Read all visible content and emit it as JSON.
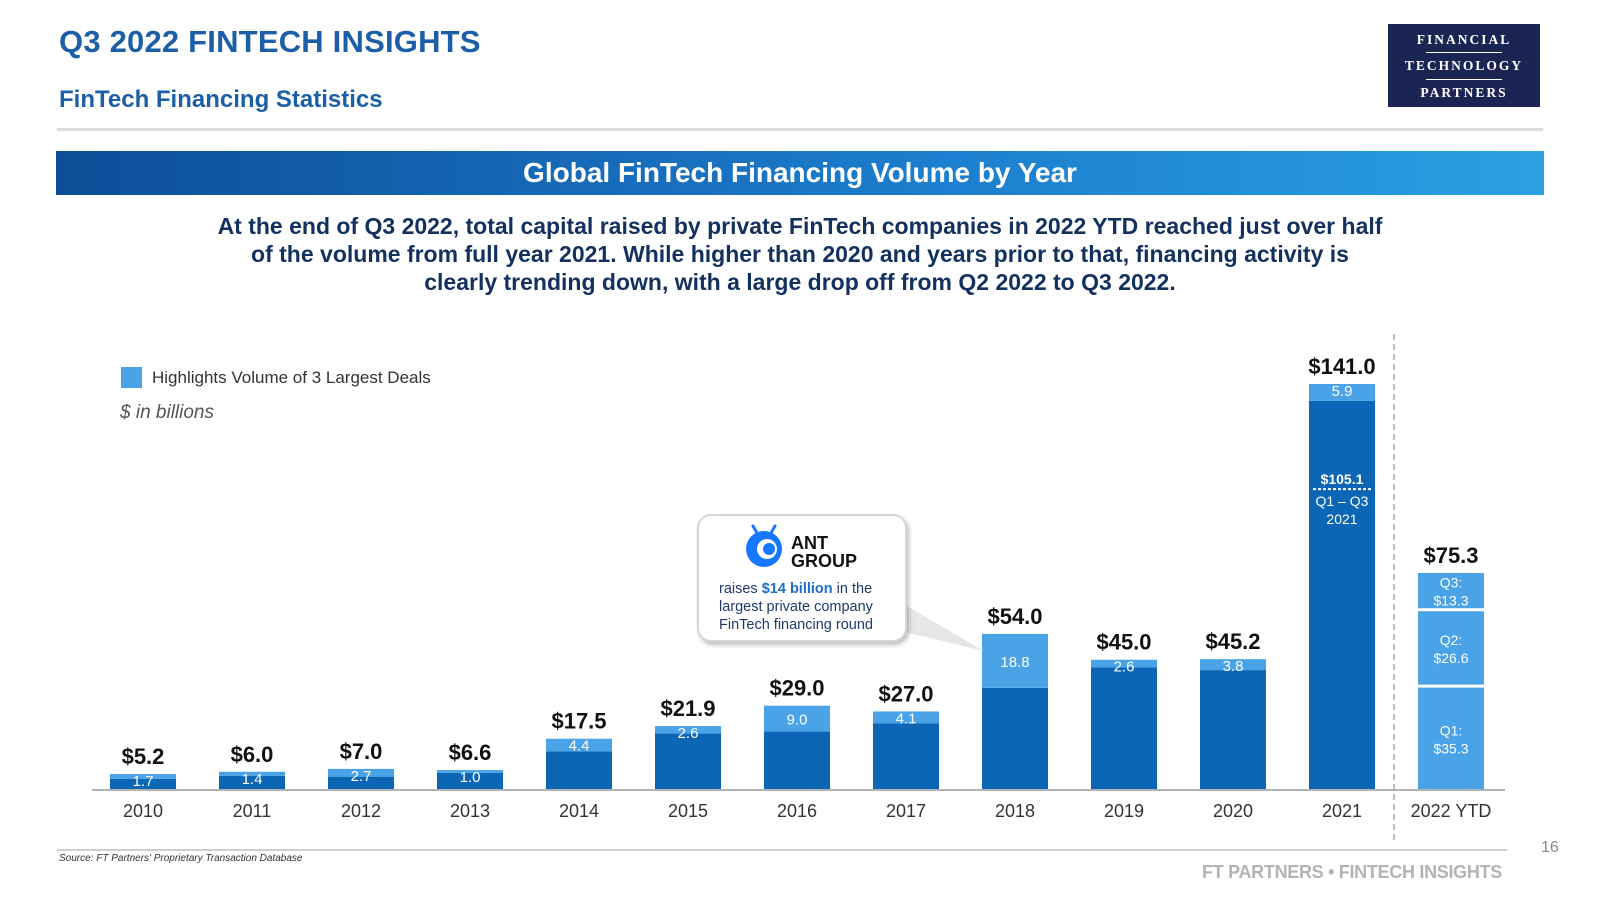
{
  "header": {
    "title": "Q3 2022 FINTECH INSIGHTS",
    "subtitle": "FinTech Financing Statistics",
    "logo": {
      "line1": "FINANCIAL",
      "line2": "TECHNOLOGY",
      "line3": "PARTNERS"
    }
  },
  "banner": {
    "title": "Global FinTech Financing Volume by Year"
  },
  "summary": {
    "lines": [
      "At the end of Q3 2022, total capital raised by private FinTech companies in 2022 YTD reached just over half",
      "of the volume from full year 2021. While higher than 2020 and years prior to that, financing activity is",
      "clearly trending down, with a large drop off from Q2 2022 to Q3 2022."
    ]
  },
  "legend": {
    "label": "Highlights Volume of 3 Largest Deals"
  },
  "unit_note": "$ in billions",
  "colors": {
    "base": "#0b66b6",
    "highlight": "#4aa3e6",
    "text": "#111111"
  },
  "callout": {
    "brand_line1": "ANT",
    "brand_line2": "GROUP",
    "text_prefix": "raises ",
    "text_bold": "$14 billion",
    "text_rest1": " in the",
    "text_line2": "largest private company",
    "text_line3": "FinTech financing round",
    "icon": "ant-group-logo-icon"
  },
  "chart_data": {
    "type": "bar",
    "stacked": true,
    "title": "Global FinTech Financing Volume by Year",
    "ylabel": "$ in billions",
    "categories": [
      "2010",
      "2011",
      "2012",
      "2013",
      "2014",
      "2015",
      "2016",
      "2017",
      "2018",
      "2019",
      "2020",
      "2021"
    ],
    "totals": [
      5.2,
      6.0,
      7.0,
      6.6,
      17.5,
      21.9,
      29.0,
      27.0,
      54.0,
      45.0,
      45.2,
      141.0
    ],
    "total_labels": [
      "$5.2",
      "$6.0",
      "$7.0",
      "$6.6",
      "$17.5",
      "$21.9",
      "$29.0",
      "$27.0",
      "$54.0",
      "$45.0",
      "$45.2",
      "$141.0"
    ],
    "largest_deals": [
      1.7,
      1.4,
      2.7,
      1.0,
      4.4,
      2.6,
      9.0,
      4.1,
      18.8,
      2.6,
      3.8,
      5.9
    ],
    "largest_deal_labels": [
      "1.7",
      "1.4",
      "2.7",
      "1.0",
      "4.4",
      "2.6",
      "9.0",
      "4.1",
      "18.8",
      "2.6",
      "3.8",
      "5.9"
    ],
    "annotation_2021": {
      "value": 105.1,
      "value_label": "$105.1",
      "line1": "Q1 – Q3",
      "line2": "2021"
    },
    "ytd": {
      "category": "2022 YTD",
      "total": 75.3,
      "total_label": "$75.3",
      "quarters": [
        {
          "name": "Q1:",
          "value": 35.3,
          "label": "$35.3"
        },
        {
          "name": "Q2:",
          "value": 26.6,
          "label": "$26.6"
        },
        {
          "name": "Q3:",
          "value": 13.3,
          "label": "$13.3"
        }
      ]
    },
    "legend": "top-left",
    "grid": false
  },
  "footer": {
    "source": "Source: FT Partners' Proprietary Transaction Database",
    "brand": "FT PARTNERS • FINTECH INSIGHTS",
    "page_number": "16"
  }
}
